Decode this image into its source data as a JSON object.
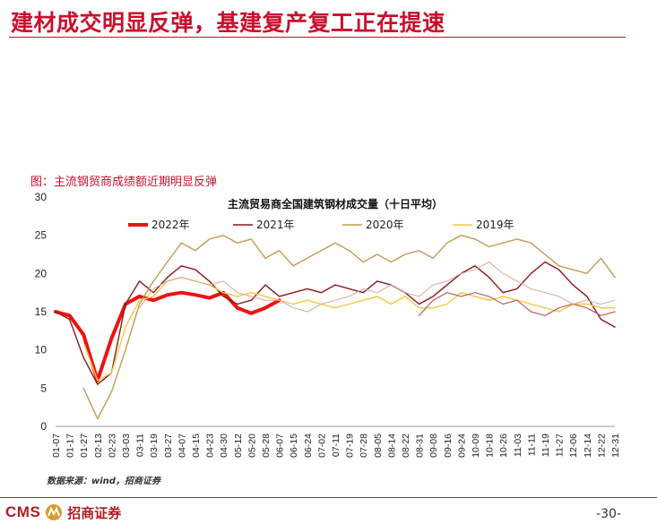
{
  "page": {
    "title": "建材成交明显反弹，基建复产复工正在提速",
    "figure_caption": "图：主流钢贸商成绩额近期明显反弹",
    "source": "数据来源：wind，招商证券",
    "brand_latin": "CMS",
    "brand_cn": "招商证券",
    "page_number": "-30-",
    "brand_colors": {
      "accent": "#c8102e",
      "logo": "#b11c25"
    }
  },
  "chart_data": {
    "type": "line",
    "title": "主流贸易商全国建筑钢材成交量（十日平均）",
    "xlabel": "",
    "ylabel": "",
    "ylim": [
      0,
      30
    ],
    "yticks": [
      0,
      5,
      10,
      15,
      20,
      25,
      30
    ],
    "grid": false,
    "legend_position": "top",
    "categories": [
      "01-07",
      "01-17",
      "01-27",
      "02-13",
      "02-23",
      "03-03",
      "03-11",
      "03-19",
      "03-27",
      "04-07",
      "04-15",
      "04-23",
      "04-30",
      "05-12",
      "05-20",
      "05-28",
      "06-07",
      "06-15",
      "06-24",
      "07-02",
      "07-11",
      "07-19",
      "07-28",
      "08-05",
      "08-14",
      "08-22",
      "08-31",
      "09-08",
      "09-16",
      "09-24",
      "10-09",
      "10-18",
      "10-26",
      "11-03",
      "11-11",
      "11-19",
      "11-27",
      "12-06",
      "12-14",
      "12-22",
      "12-31"
    ],
    "series": [
      {
        "name": "2022年",
        "color": "#ee1111",
        "width": 4,
        "values": [
          15.0,
          14.5,
          12.0,
          6.0,
          11.5,
          16.0,
          17.0,
          16.5,
          17.2,
          17.5,
          17.2,
          16.8,
          17.5,
          15.5,
          14.8,
          15.5,
          16.5,
          null,
          null,
          null,
          null,
          null,
          null,
          null,
          null,
          null,
          null,
          null,
          null,
          null,
          null,
          null,
          null,
          null,
          null,
          null,
          null,
          null,
          null,
          null,
          null
        ]
      },
      {
        "name": "2021年",
        "color": "#8b1a1a",
        "width": 1.4,
        "values": [
          15.0,
          14.0,
          9.0,
          5.5,
          7.0,
          16.0,
          19.0,
          17.5,
          19.5,
          21.0,
          20.5,
          19.0,
          17.0,
          16.0,
          16.5,
          18.5,
          17.0,
          17.5,
          18.0,
          17.5,
          18.5,
          18.0,
          17.5,
          19.0,
          18.5,
          17.5,
          16.0,
          17.0,
          18.5,
          20.0,
          21.0,
          19.5,
          17.5,
          18.0,
          20.0,
          21.5,
          20.5,
          18.5,
          17.0,
          14.0,
          13.0
        ]
      },
      {
        "name": "2020年",
        "color": "#c49a52",
        "width": 1.4,
        "values": [
          null,
          null,
          5.0,
          1.0,
          4.5,
          10.0,
          16.0,
          19.0,
          21.5,
          24.0,
          23.0,
          24.5,
          25.0,
          24.0,
          24.5,
          22.0,
          23.0,
          21.0,
          22.0,
          23.0,
          24.0,
          23.0,
          21.5,
          22.5,
          21.5,
          22.5,
          23.0,
          22.0,
          24.0,
          25.0,
          24.5,
          23.5,
          24.0,
          24.5,
          24.0,
          22.5,
          21.0,
          20.5,
          20.0,
          22.0,
          19.5
        ]
      },
      {
        "name": "2019年",
        "color": "#f5c842",
        "width": 1.4,
        "values": [
          null,
          null,
          11.0,
          6.0,
          7.0,
          13.0,
          16.5,
          17.0,
          19.0,
          19.5,
          19.0,
          18.5,
          17.5,
          17.0,
          17.5,
          17.0,
          16.5,
          16.0,
          16.5,
          16.0,
          15.5,
          16.0,
          16.5,
          17.0,
          16.0,
          17.0,
          15.5,
          15.5,
          16.0,
          17.5,
          17.0,
          16.5,
          17.0,
          16.5,
          16.0,
          15.5,
          15.0,
          16.0,
          16.0,
          15.5,
          15.5
        ]
      },
      {
        "color": "#bf6060",
        "width": 1.2,
        "values": [
          null,
          null,
          null,
          null,
          null,
          null,
          null,
          null,
          null,
          null,
          null,
          null,
          null,
          null,
          null,
          null,
          null,
          null,
          null,
          null,
          null,
          null,
          null,
          null,
          null,
          null,
          14.5,
          16.5,
          17.5,
          17.0,
          17.5,
          17.0,
          16.0,
          16.5,
          15.0,
          14.5,
          15.5,
          16.0,
          15.5,
          14.5,
          15.0
        ]
      },
      {
        "color": "#d8a898",
        "width": 1.0,
        "values": [
          null,
          null,
          null,
          null,
          null,
          null,
          15.5,
          18.0,
          19.0,
          19.5,
          19.0,
          18.5,
          19.0,
          17.5,
          17.0,
          16.5,
          16.5,
          15.5,
          15.0,
          16.0,
          16.5,
          17.0,
          18.0,
          17.5,
          18.5,
          17.5,
          17.0,
          18.5,
          19.0,
          20.0,
          20.5,
          21.5,
          20.0,
          19.0,
          18.0,
          17.5,
          17.0,
          16.0,
          16.5,
          16.0,
          16.5
        ]
      }
    ]
  }
}
